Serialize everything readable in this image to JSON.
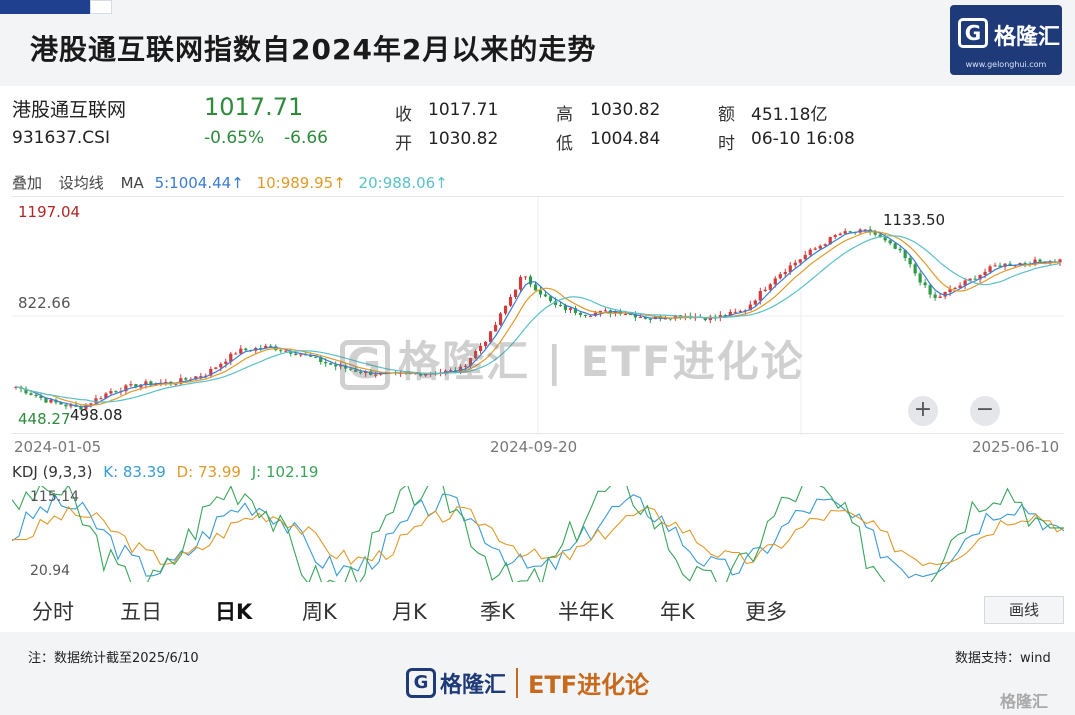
{
  "header": {
    "title": "港股通互联网指数自2024年2月以来的走势",
    "logo_text": "格隆汇",
    "logo_url": "www.gelonghui.com",
    "logo_mark": "G"
  },
  "quote": {
    "name": "港股通互联网",
    "code": "931637.CSI",
    "price": "1017.71",
    "change_pct": "-0.65%",
    "change": "-6.66",
    "close_label": "收",
    "close_value": "1017.71",
    "open_label": "开",
    "open_value": "1030.82",
    "high_label": "高",
    "high_value": "1030.82",
    "low_label": "低",
    "low_value": "1004.84",
    "amount_label": "额",
    "amount_value": "451.18亿",
    "time_label": "时",
    "time_value": "06-10 16:08"
  },
  "ma_bar": {
    "overlay": "叠加",
    "set_ma": "设均线",
    "ma_label": "MA",
    "ma5": "5:1004.44↑",
    "ma10": "10:989.95↑",
    "ma20": "20:988.06↑",
    "colors": {
      "ma5": "#3a7bd5",
      "ma10": "#e09a2a",
      "ma20": "#5bc0c8"
    }
  },
  "kdj_bar": {
    "label": "KDJ (9,3,3)",
    "k": "K: 83.39",
    "d": "D: 73.99",
    "j": "J: 102.19",
    "y_top": "115.14",
    "y_bottom": "20.94"
  },
  "watermark": "格隆汇 | ETF进化论",
  "zoom": {
    "plus": "+",
    "minus": "−"
  },
  "tabs": [
    "分时",
    "五日",
    "日K",
    "周K",
    "月K",
    "季K",
    "半年K",
    "年K",
    "更多"
  ],
  "active_tab": "日K",
  "draw_button": "画线",
  "footer": {
    "note": "注：数据统计截至2025/6/10",
    "support": "数据支持：wind",
    "brand": "格隆汇",
    "brand_sub": "ETF进化论",
    "corner": "格隆汇"
  },
  "chart_data": {
    "type": "line",
    "title": "港股通互联网",
    "y_axis_labels": [
      "1197.04",
      "822.66",
      "448.27"
    ],
    "ylim": [
      448.27,
      1197.04
    ],
    "x_tick_labels": [
      "2024-01-05",
      "2024-09-20",
      "2025-06-10"
    ],
    "annotations": [
      {
        "text": "1133.50",
        "x": "2025-03",
        "y": 1133.5,
        "kind": "max"
      },
      {
        "text": "498.08",
        "x": "2024-01",
        "y": 498.08,
        "kind": "min"
      }
    ],
    "series": [
      {
        "name": "收盘",
        "x": [
          "2024-01-05",
          "2024-01-22",
          "2024-02-05",
          "2024-02-26",
          "2024-03-15",
          "2024-04-08",
          "2024-04-25",
          "2024-05-10",
          "2024-05-20",
          "2024-06-05",
          "2024-06-25",
          "2024-07-15",
          "2024-08-05",
          "2024-08-26",
          "2024-09-10",
          "2024-09-20",
          "2024-09-27",
          "2024-10-08",
          "2024-10-20",
          "2024-11-05",
          "2024-11-25",
          "2024-12-10",
          "2024-12-31",
          "2025-01-15",
          "2025-02-05",
          "2025-02-20",
          "2025-03-05",
          "2025-03-18",
          "2025-04-03",
          "2025-04-09",
          "2025-04-25",
          "2025-05-14",
          "2025-05-30",
          "2025-06-10"
        ],
        "values": [
          575,
          525,
          500,
          560,
          585,
          590,
          620,
          700,
          715,
          690,
          650,
          625,
          615,
          625,
          630,
          760,
          965,
          860,
          830,
          840,
          815,
          825,
          815,
          840,
          960,
          1040,
          1110,
          1120,
          1040,
          880,
          940,
          1000,
          1010,
          1017.71
        ]
      }
    ],
    "kdj": {
      "ylim": [
        20.94,
        115.14
      ],
      "k_last": 83.39,
      "d_last": 73.99,
      "j_last": 102.19
    }
  }
}
